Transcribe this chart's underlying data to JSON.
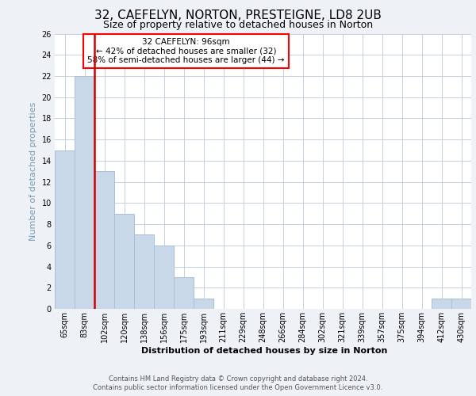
{
  "title": "32, CAEFELYN, NORTON, PRESTEIGNE, LD8 2UB",
  "subtitle": "Size of property relative to detached houses in Norton",
  "xlabel": "Distribution of detached houses by size in Norton",
  "ylabel": "Number of detached properties",
  "categories": [
    "65sqm",
    "83sqm",
    "102sqm",
    "120sqm",
    "138sqm",
    "156sqm",
    "175sqm",
    "193sqm",
    "211sqm",
    "229sqm",
    "248sqm",
    "266sqm",
    "284sqm",
    "302sqm",
    "321sqm",
    "339sqm",
    "357sqm",
    "375sqm",
    "394sqm",
    "412sqm",
    "430sqm"
  ],
  "values": [
    15,
    22,
    13,
    9,
    7,
    6,
    3,
    1,
    0,
    0,
    0,
    0,
    0,
    0,
    0,
    0,
    0,
    0,
    0,
    1,
    1
  ],
  "bar_color": "#c8d8e8",
  "bar_edge_color": "#a8c0d8",
  "highlight_color": "#cc0000",
  "annotation_title": "32 CAEFELYN: 96sqm",
  "annotation_line1": "← 42% of detached houses are smaller (32)",
  "annotation_line2": "58% of semi-detached houses are larger (44) →",
  "ylim": [
    0,
    26
  ],
  "yticks": [
    0,
    2,
    4,
    6,
    8,
    10,
    12,
    14,
    16,
    18,
    20,
    22,
    24,
    26
  ],
  "footer1": "Contains HM Land Registry data © Crown copyright and database right 2024.",
  "footer2": "Contains public sector information licensed under the Open Government Licence v3.0.",
  "background_color": "#eef2f7",
  "plot_bg_color": "#ffffff",
  "grid_color": "#c5d0dc",
  "ylabel_color": "#7a9bb5",
  "title_fontsize": 11,
  "subtitle_fontsize": 9,
  "ylabel_fontsize": 8,
  "xlabel_fontsize": 8,
  "tick_fontsize": 7,
  "footer_fontsize": 6,
  "ann_fontsize": 7.5
}
